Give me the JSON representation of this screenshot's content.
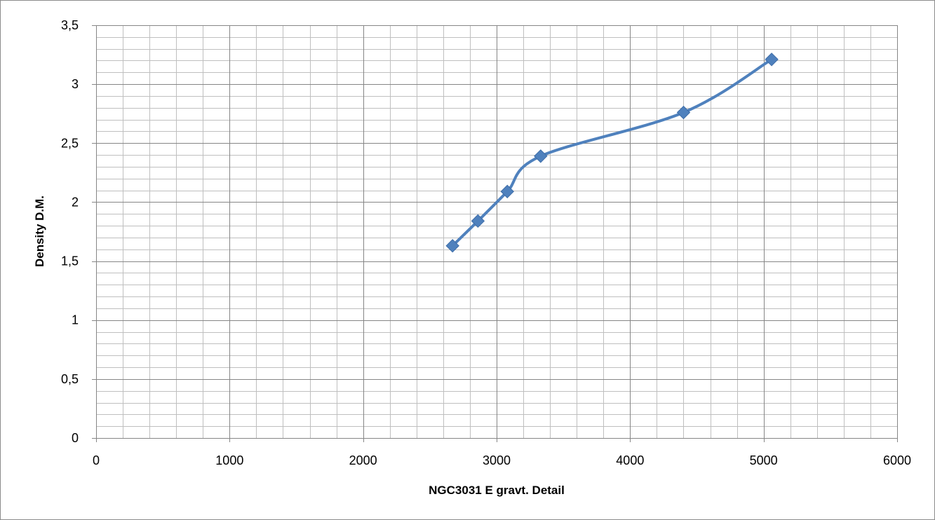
{
  "chart_data": {
    "type": "scatter",
    "title": "",
    "xlabel": "NGC3031 E gravt. Detail",
    "ylabel": "Density D.M.",
    "xlim": [
      0,
      6000
    ],
    "ylim": [
      0,
      3.5
    ],
    "x_major_ticks": [
      0,
      1000,
      2000,
      3000,
      4000,
      5000,
      6000
    ],
    "x_tick_labels": [
      "0",
      "1000",
      "2000",
      "3000",
      "4000",
      "5000",
      "6000"
    ],
    "y_major_ticks": [
      0,
      0.5,
      1,
      1.5,
      2,
      2.5,
      3,
      3.5
    ],
    "y_tick_labels": [
      "0",
      "0,5",
      "1",
      "1,5",
      "2",
      "2,5",
      "3",
      "3,5"
    ],
    "x_minor_step": 200,
    "y_minor_step": 0.1,
    "grid": true,
    "line_style": "smooth",
    "marker": "diamond",
    "series": [
      {
        "color": "#4f81bd",
        "x": [
          2670,
          2860,
          3080,
          3330,
          4400,
          5060
        ],
        "y": [
          1.63,
          1.84,
          2.09,
          2.39,
          2.76,
          3.21
        ]
      }
    ]
  }
}
